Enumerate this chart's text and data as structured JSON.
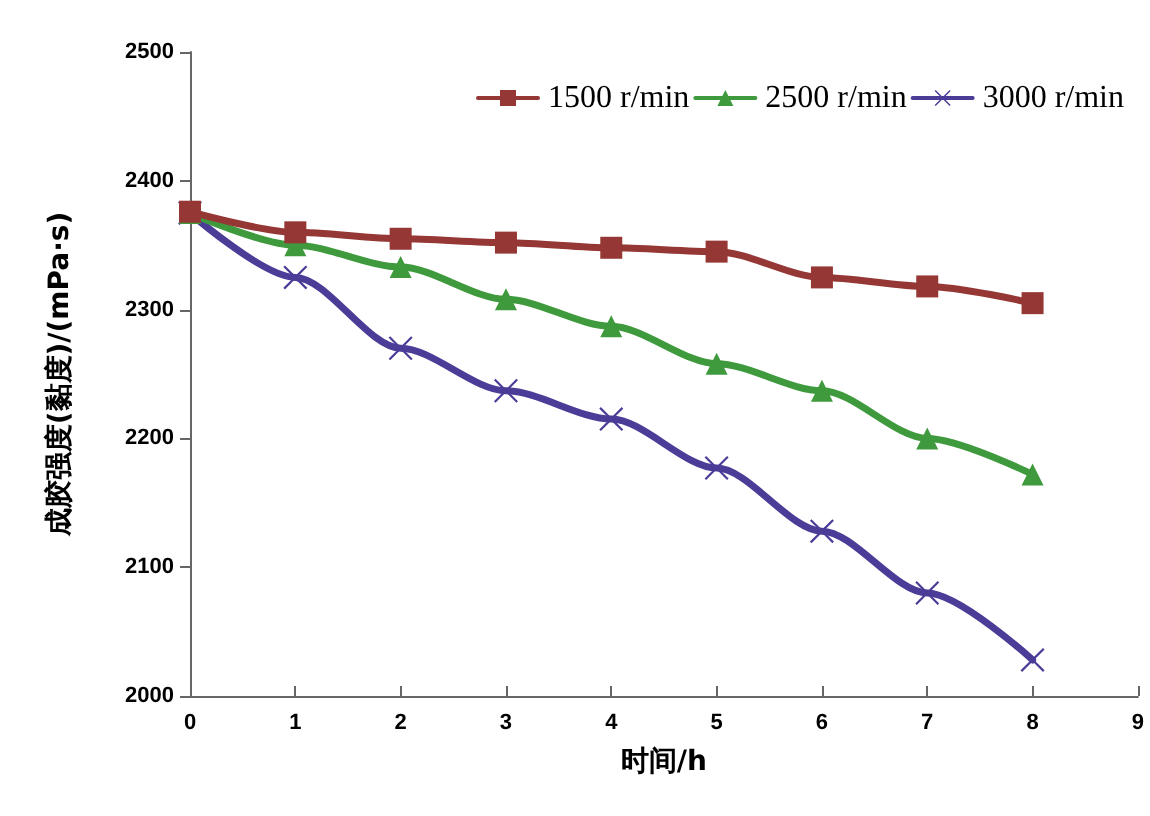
{
  "chart_data": {
    "type": "line",
    "xlabel": "时间/h",
    "ylabel": "成胶强度(黏度)/(mPa·s)",
    "x": [
      0,
      1,
      2,
      3,
      4,
      5,
      6,
      7,
      8
    ],
    "xlim": [
      0,
      9
    ],
    "xticks": [
      0,
      1,
      2,
      3,
      4,
      5,
      6,
      7,
      8,
      9
    ],
    "ylim": [
      2000,
      2500
    ],
    "yticks": [
      2000,
      2100,
      2200,
      2300,
      2400,
      2500
    ],
    "grid": false,
    "legend": "top right",
    "series": [
      {
        "name": "1500 r/min",
        "color": "#953735",
        "marker": "square",
        "values": [
          2376,
          2360,
          2355,
          2352,
          2348,
          2345,
          2325,
          2318,
          2305
        ]
      },
      {
        "name": "2500 r/min",
        "color": "#3e9a3c",
        "marker": "triangle",
        "values": [
          2375,
          2350,
          2333,
          2308,
          2287,
          2258,
          2237,
          2200,
          2172
        ]
      },
      {
        "name": "3000 r/min",
        "color": "#4b3c98",
        "marker": "cross",
        "values": [
          2375,
          2325,
          2270,
          2237,
          2215,
          2177,
          2128,
          2080,
          2028
        ]
      }
    ]
  }
}
